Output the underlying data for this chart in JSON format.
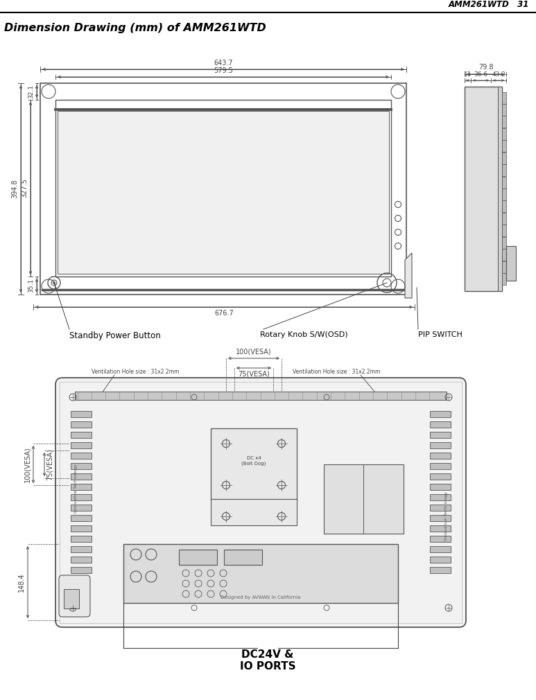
{
  "title_right": "AMM261WTD   31",
  "title_left": "Dimension Drawing (mm) of AMM261WTD",
  "page_bg": "#ffffff",
  "lc": "#555555",
  "dc": "#444444",
  "labels": {
    "standby": "Standby Power Button",
    "rotary": "Rotary Knob S/W(OSD)",
    "pip": "PIP SWITCH",
    "dc24v": "DC24V &\nIO PORTS",
    "vesa_h_top": "100(VESA)",
    "vesa_v_top": "75(VESA)",
    "vesa_h_side": "100(VESA)",
    "vesa_v_side": "75(VESA)",
    "vent_left": "Ventilation Hole size : 31x2.2mm",
    "vent_right": "Ventilation Hole size : 31x2.2mm",
    "dim_643": "643.7",
    "dim_579": "579.5",
    "dim_394": "394.8",
    "dim_327": "327.5",
    "dim_32": "32.1",
    "dim_35": "35.1",
    "dim_676": "676.7",
    "dim_79": "79.8",
    "dim_11": "11",
    "dim_36": "36.6",
    "dim_43": "43.2",
    "dim_148": "148.4"
  }
}
